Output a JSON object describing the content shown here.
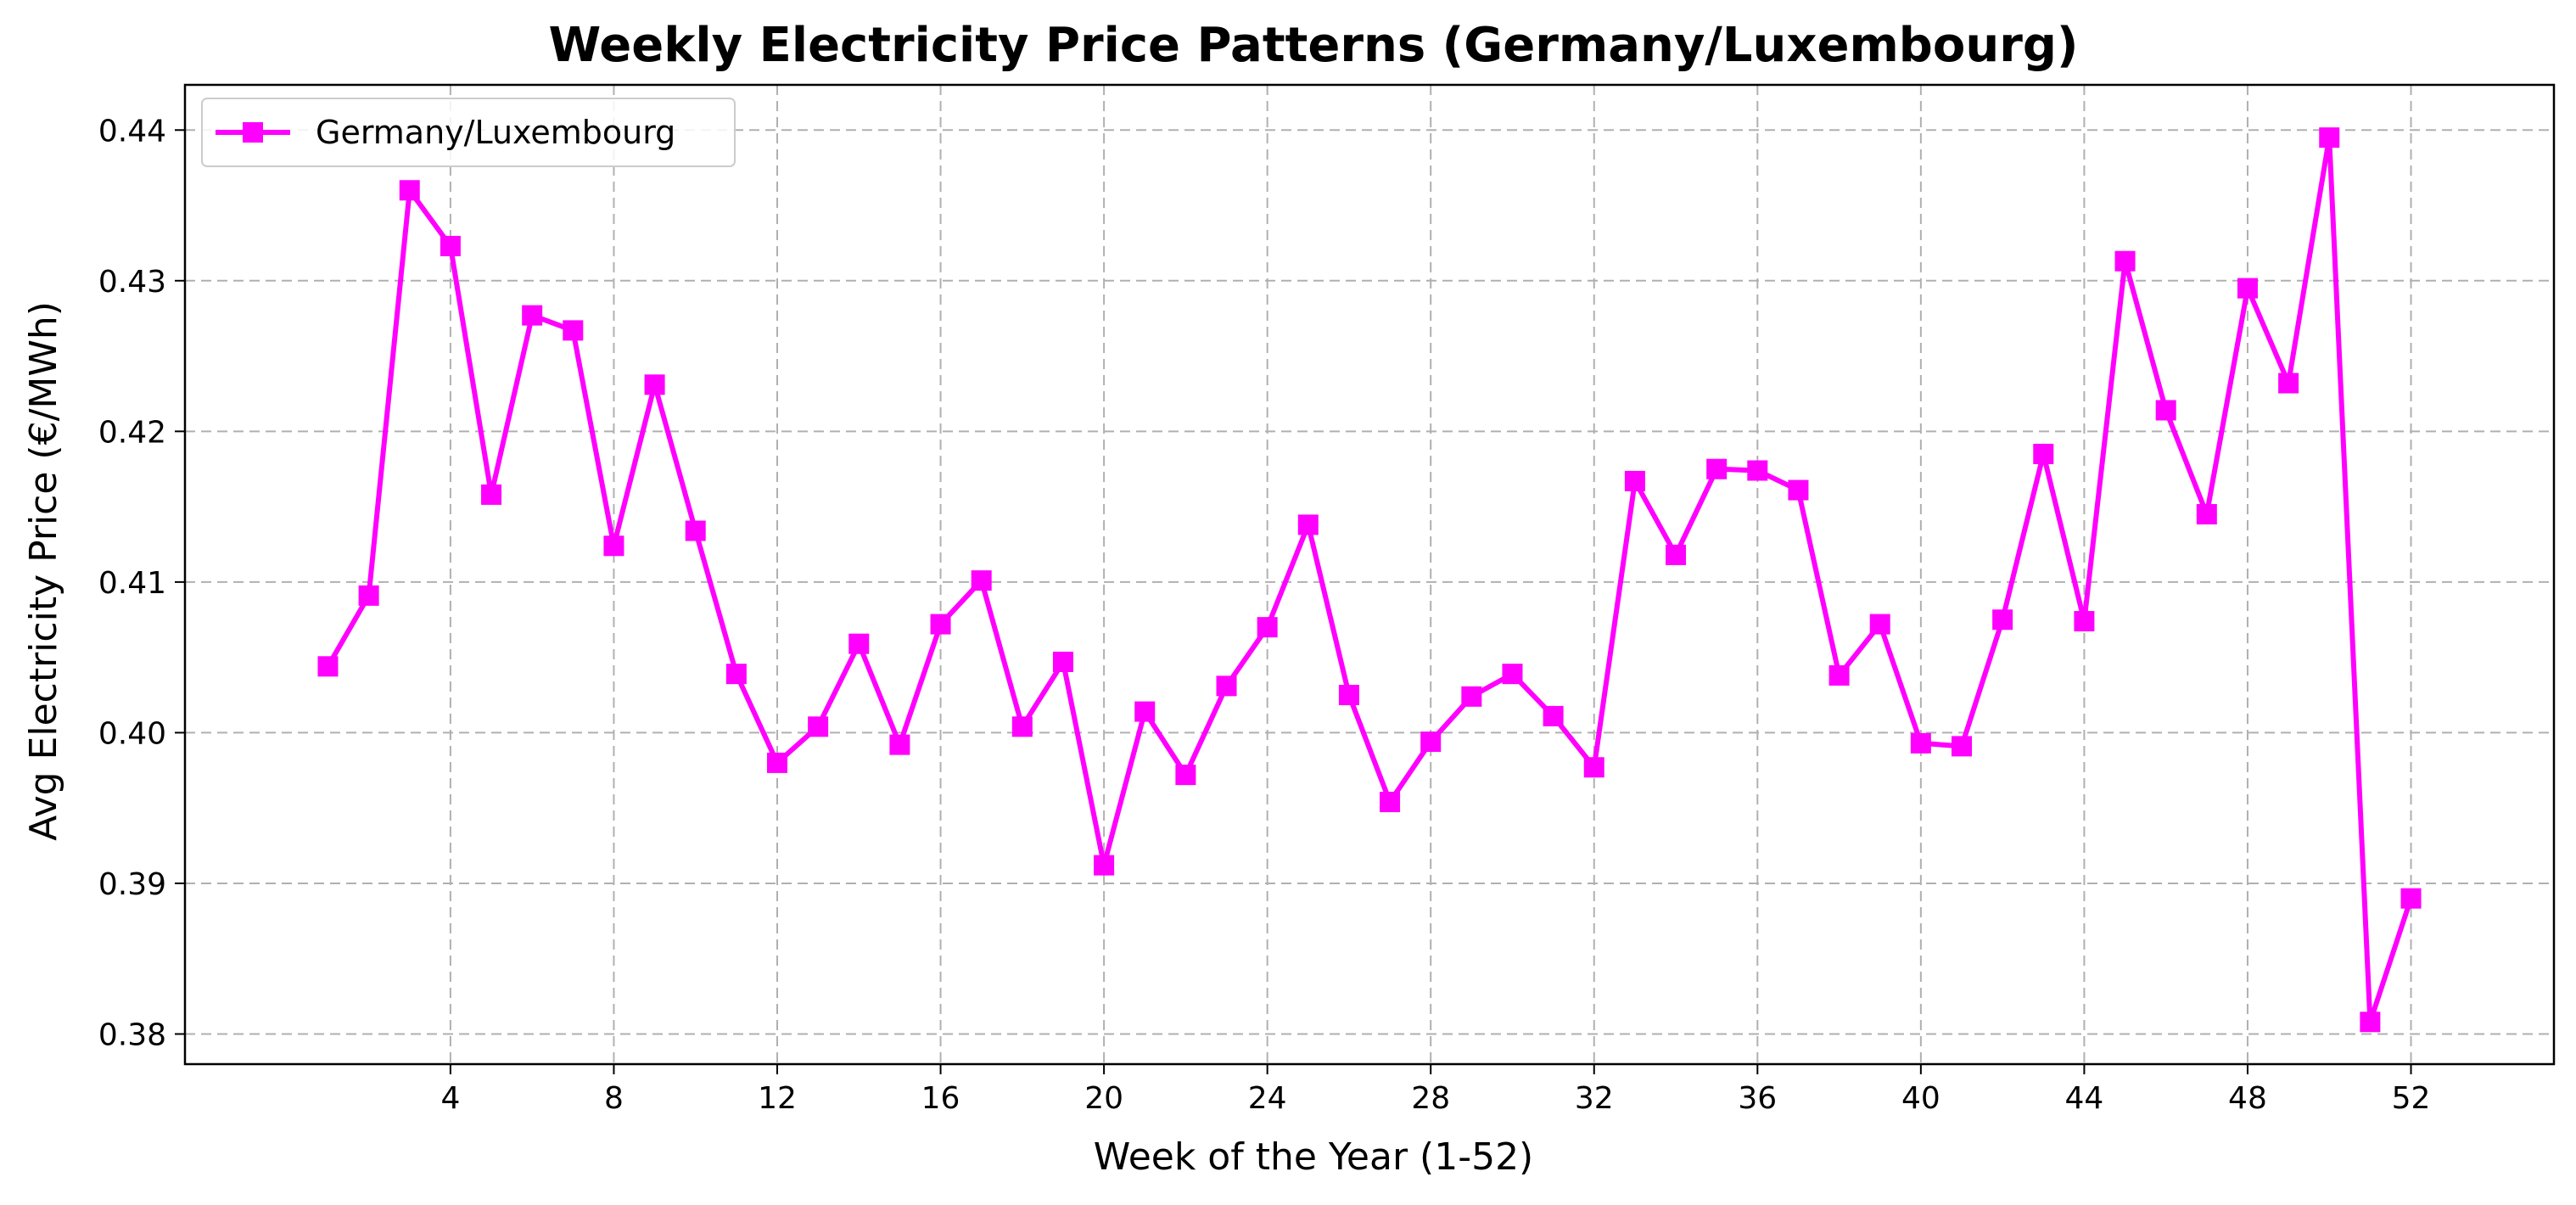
{
  "chart_data": {
    "type": "line",
    "title": "Weekly Electricity Price Patterns (Germany/Luxembourg)",
    "xlabel": "Week of the Year (1-52)",
    "ylabel": "Avg Electricity Price (€/MWh)",
    "xlim": [
      -2.5,
      55.5
    ],
    "ylim": [
      0.378,
      0.443
    ],
    "xticks": [
      4,
      8,
      12,
      16,
      20,
      24,
      28,
      32,
      36,
      40,
      44,
      48,
      52
    ],
    "yticks": [
      0.38,
      0.39,
      0.4,
      0.41,
      0.42,
      0.43,
      0.44
    ],
    "ytick_labels": [
      "0.38",
      "0.39",
      "0.40",
      "0.41",
      "0.42",
      "0.43",
      "0.44"
    ],
    "grid": true,
    "legend_position": "top-left",
    "series": [
      {
        "name": "Germany/Luxembourg",
        "color": "#ff00ff",
        "marker": "square",
        "x": [
          1,
          2,
          3,
          4,
          5,
          6,
          7,
          8,
          9,
          10,
          11,
          12,
          13,
          14,
          15,
          16,
          17,
          18,
          19,
          20,
          21,
          22,
          23,
          24,
          25,
          26,
          27,
          28,
          29,
          30,
          31,
          32,
          33,
          34,
          35,
          36,
          37,
          38,
          39,
          40,
          41,
          42,
          43,
          44,
          45,
          46,
          47,
          48,
          49,
          50,
          51,
          52
        ],
        "y": [
          0.4044,
          0.4091,
          0.436,
          0.4323,
          0.4158,
          0.4277,
          0.4267,
          0.4124,
          0.4231,
          0.4134,
          0.4039,
          0.398,
          0.4004,
          0.4059,
          0.3992,
          0.4072,
          0.4101,
          0.4004,
          0.4047,
          0.3912,
          0.4014,
          0.3972,
          0.4031,
          0.407,
          0.4138,
          0.4025,
          0.3954,
          0.3994,
          0.4024,
          0.4039,
          0.4011,
          0.3977,
          0.4167,
          0.4118,
          0.4175,
          0.4174,
          0.4161,
          0.4038,
          0.4072,
          0.3993,
          0.3991,
          0.4075,
          0.4185,
          0.4074,
          0.4313,
          0.4214,
          0.4145,
          0.4295,
          0.4232,
          0.4395,
          0.3808,
          0.389
        ]
      }
    ]
  }
}
